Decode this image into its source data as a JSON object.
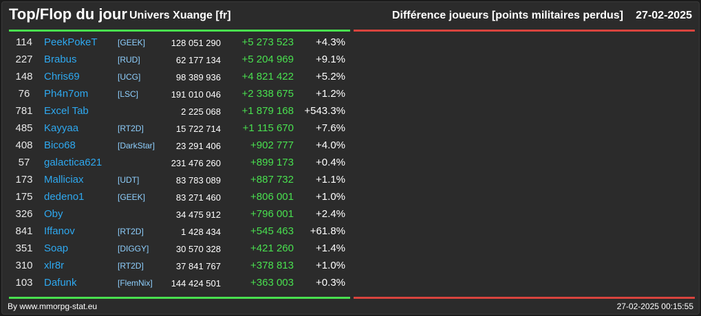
{
  "header": {
    "title": "Top/Flop du jour",
    "universe": "Univers Xuange [fr]",
    "metric": "Différence joueurs [points militaires perdus]",
    "date": "27-02-2025"
  },
  "colors": {
    "top_accent": "#49e04f",
    "flop_accent": "#d9443e",
    "name_link": "#2ea8ef"
  },
  "top_rows": [
    {
      "rank": "114",
      "name": "PeekPokeT",
      "alliance": "[GEEK]",
      "total": "128 051 290",
      "diff": "+5 273 523",
      "pct": "+4.3%"
    },
    {
      "rank": "227",
      "name": "Brabus",
      "alliance": "[RUD]",
      "total": "62 177 134",
      "diff": "+5 204 969",
      "pct": "+9.1%"
    },
    {
      "rank": "148",
      "name": "Chris69",
      "alliance": "[UCG]",
      "total": "98 389 936",
      "diff": "+4 821 422",
      "pct": "+5.2%"
    },
    {
      "rank": "76",
      "name": "Ph4n7om",
      "alliance": "[LSC]",
      "total": "191 010 046",
      "diff": "+2 338 675",
      "pct": "+1.2%"
    },
    {
      "rank": "781",
      "name": "Excel Tab",
      "alliance": "",
      "total": "2 225 068",
      "diff": "+1 879 168",
      "pct": "+543.3%"
    },
    {
      "rank": "485",
      "name": "Kayyaa",
      "alliance": "[RT2D]",
      "total": "15 722 714",
      "diff": "+1 115 670",
      "pct": "+7.6%"
    },
    {
      "rank": "408",
      "name": "Bico68",
      "alliance": "[DarkStar]",
      "total": "23 291 406",
      "diff": "+902 777",
      "pct": "+4.0%"
    },
    {
      "rank": "57",
      "name": "galactica621",
      "alliance": "",
      "total": "231 476 260",
      "diff": "+899 173",
      "pct": "+0.4%"
    },
    {
      "rank": "173",
      "name": "Malliciax",
      "alliance": "[UDT]",
      "total": "83 783 089",
      "diff": "+887 732",
      "pct": "+1.1%"
    },
    {
      "rank": "175",
      "name": "dedeno1",
      "alliance": "[GEEK]",
      "total": "83 271 460",
      "diff": "+806 001",
      "pct": "+1.0%"
    },
    {
      "rank": "326",
      "name": "Oby",
      "alliance": "",
      "total": "34 475 912",
      "diff": "+796 001",
      "pct": "+2.4%"
    },
    {
      "rank": "841",
      "name": "Iffanov",
      "alliance": "[RT2D]",
      "total": "1 428 434",
      "diff": "+545 463",
      "pct": "+61.8%"
    },
    {
      "rank": "351",
      "name": "Soap",
      "alliance": "[DIGGY]",
      "total": "30 570 328",
      "diff": "+421 260",
      "pct": "+1.4%"
    },
    {
      "rank": "310",
      "name": "xlr8r",
      "alliance": "[RT2D]",
      "total": "37 841 767",
      "diff": "+378 813",
      "pct": "+1.0%"
    },
    {
      "rank": "103",
      "name": "Dafunk",
      "alliance": "[FlemNix]",
      "total": "144 424 501",
      "diff": "+363 003",
      "pct": "+0.3%"
    }
  ],
  "footer": {
    "credit": "By www.mmorpg-stat.eu",
    "timestamp": "27-02-2025 00:15:55"
  }
}
